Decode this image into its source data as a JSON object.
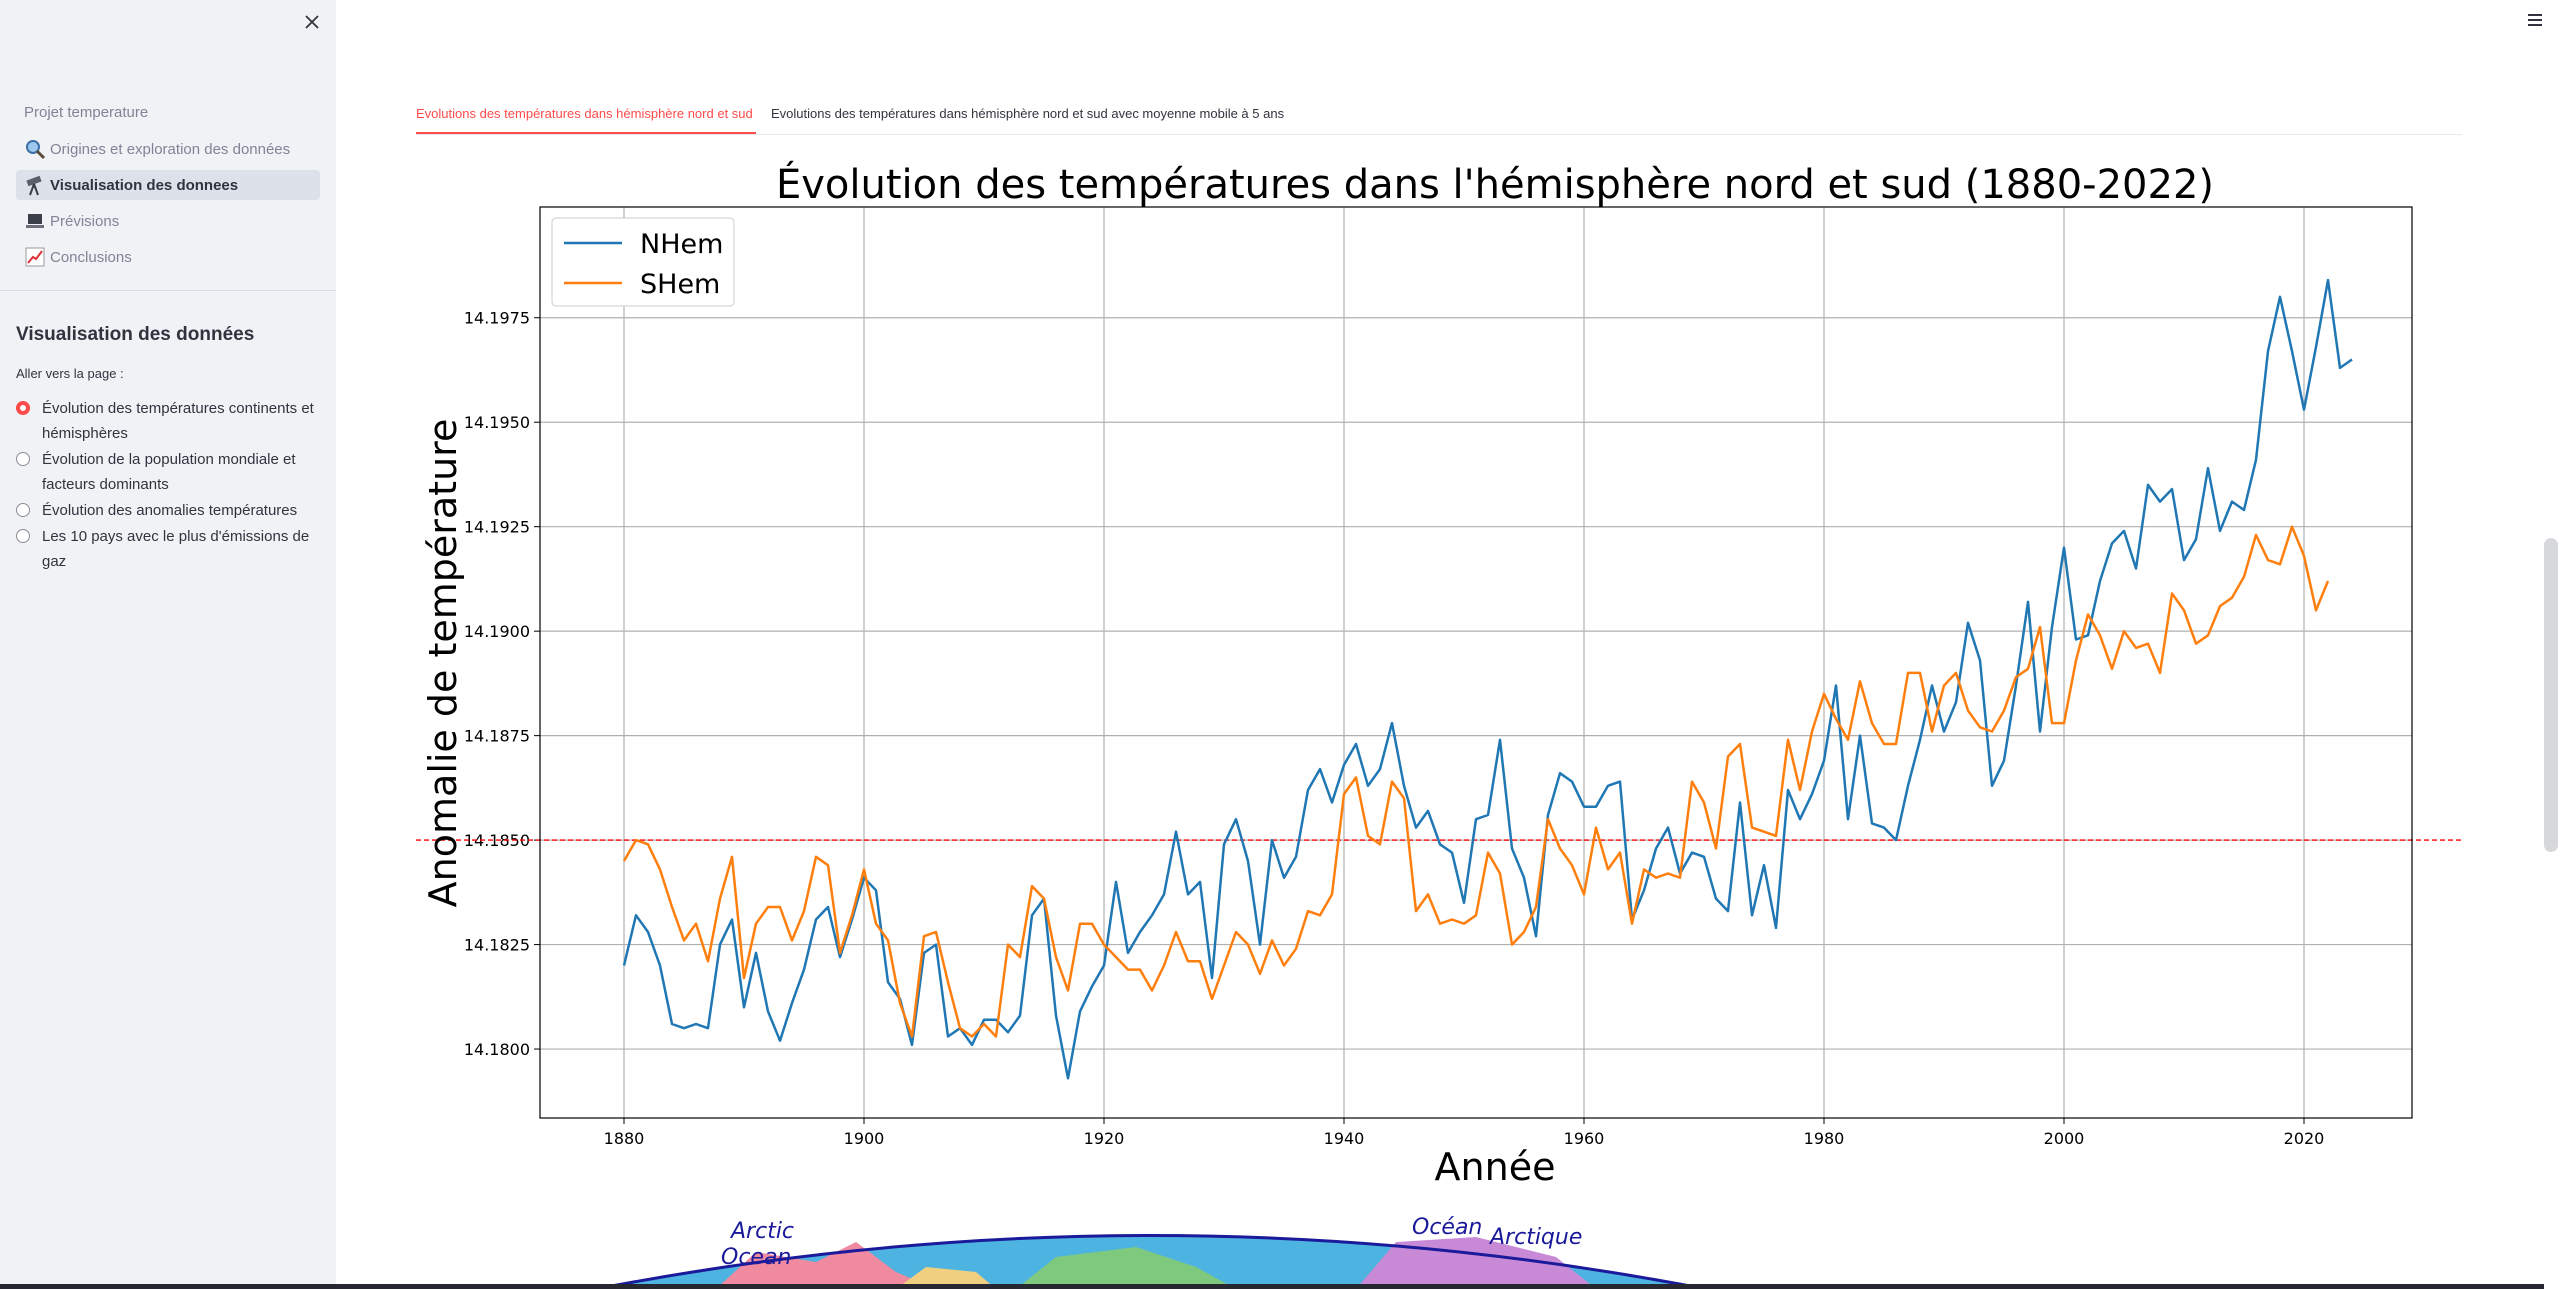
{
  "sidebar": {
    "project_title": "Projet temperature",
    "nav_items": [
      {
        "label": "Origines et exploration des données",
        "icon": "magnifier-icon",
        "active": false
      },
      {
        "label": "Visualisation des donnees",
        "icon": "telescope-icon",
        "active": true
      },
      {
        "label": "Prévisions",
        "icon": "laptop-icon",
        "active": false
      },
      {
        "label": "Conclusions",
        "icon": "chart-up-icon",
        "active": false
      }
    ],
    "section_title": "Visualisation des données",
    "radio_label": "Aller vers la page :",
    "radio_options": [
      {
        "label": "Évolution des températures continents et hémisphères",
        "selected": true
      },
      {
        "label": "Évolution de la population mondiale et facteurs dominants",
        "selected": false
      },
      {
        "label": "Évolution des anomalies températures",
        "selected": false
      },
      {
        "label": "Les 10 pays avec le plus d'émissions de gaz",
        "selected": false
      }
    ],
    "accent_color": "#ff4b4b"
  },
  "tabs": [
    {
      "label": "Evolutions des températures dans hémisphère nord et sud",
      "active": true
    },
    {
      "label": "Evolutions des températures dans hémisphère nord et sud avec moyenne mobile à 5 ans",
      "active": false
    }
  ],
  "map": {
    "labels": [
      "Arctic",
      "Ocean",
      "Océan",
      "Arctique"
    ]
  },
  "chart_data": {
    "type": "line",
    "title": "Évolution des températures dans l'hémisphère nord et sud (1880-2022)",
    "xlabel": "Année",
    "ylabel": "Anomalie de température",
    "xlim": [
      1873,
      2029
    ],
    "ylim": [
      14.17835,
      14.20015
    ],
    "xticks": [
      1880,
      1900,
      1920,
      1940,
      1960,
      1980,
      2000,
      2020
    ],
    "yticks": [
      14.18,
      14.1825,
      14.185,
      14.1875,
      14.19,
      14.1925,
      14.195,
      14.1975
    ],
    "ytick_labels": [
      "14.1800",
      "14.1825",
      "14.1850",
      "14.1875",
      "14.1900",
      "14.1925",
      "14.1950",
      "14.1975"
    ],
    "grid": true,
    "legend_position": "top-left",
    "reference_line": {
      "y": 14.185,
      "color": "#ff0000",
      "style": "dashed"
    },
    "x_start": 1880,
    "series": [
      {
        "name": "NHem",
        "color": "#1f77b4",
        "values": [
          14.182,
          14.1832,
          14.1828,
          14.182,
          14.1806,
          14.1805,
          14.1806,
          14.1805,
          14.1825,
          14.1831,
          14.181,
          14.1823,
          14.1809,
          14.1802,
          14.1811,
          14.1819,
          14.1831,
          14.1834,
          14.1822,
          14.1831,
          14.1841,
          14.1838,
          14.1816,
          14.1812,
          14.1801,
          14.1823,
          14.1825,
          14.1803,
          14.1805,
          14.1801,
          14.1807,
          14.1807,
          14.1804,
          14.1808,
          14.1832,
          14.1836,
          14.1808,
          14.1793,
          14.1809,
          14.1815,
          14.182,
          14.184,
          14.1823,
          14.1828,
          14.1832,
          14.1837,
          14.1852,
          14.1837,
          14.184,
          14.1817,
          14.1849,
          14.1855,
          14.1845,
          14.1825,
          14.185,
          14.1841,
          14.1846,
          14.1862,
          14.1867,
          14.1859,
          14.1868,
          14.1873,
          14.1863,
          14.1867,
          14.1878,
          14.1863,
          14.1853,
          14.1857,
          14.1849,
          14.1847,
          14.1835,
          14.1855,
          14.1856,
          14.1874,
          14.1848,
          14.1841,
          14.1827,
          14.1856,
          14.1866,
          14.1864,
          14.1858,
          14.1858,
          14.1863,
          14.1864,
          14.1831,
          14.1838,
          14.1848,
          14.1853,
          14.1842,
          14.1847,
          14.1846,
          14.1836,
          14.1833,
          14.1859,
          14.1832,
          14.1844,
          14.1829,
          14.1862,
          14.1855,
          14.1861,
          14.1869,
          14.1887,
          14.1855,
          14.1875,
          14.1854,
          14.1853,
          14.185,
          14.1863,
          14.1874,
          14.1887,
          14.1876,
          14.1883,
          14.1902,
          14.1893,
          14.1863,
          14.1869,
          14.1887,
          14.1907,
          14.1876,
          14.1901,
          14.192,
          14.1898,
          14.1899,
          14.1912,
          14.1921,
          14.1924,
          14.1915,
          14.1935,
          14.1931,
          14.1934,
          14.1917,
          14.1922,
          14.1939,
          14.1924,
          14.1931,
          14.1929,
          14.1941,
          14.1967,
          14.198,
          14.1967,
          14.1953,
          14.1968,
          14.1984,
          14.1963,
          14.1965
        ]
      },
      {
        "name": "SHem",
        "color": "#ff7f0e",
        "values": [
          14.1845,
          14.185,
          14.1849,
          14.1843,
          14.1834,
          14.1826,
          14.183,
          14.1821,
          14.1836,
          14.1846,
          14.1817,
          14.183,
          14.1834,
          14.1834,
          14.1826,
          14.1833,
          14.1846,
          14.1844,
          14.1823,
          14.1832,
          14.1843,
          14.183,
          14.1826,
          14.1811,
          14.1803,
          14.1827,
          14.1828,
          14.1816,
          14.1805,
          14.1803,
          14.1806,
          14.1803,
          14.1825,
          14.1822,
          14.1839,
          14.1836,
          14.1822,
          14.1814,
          14.183,
          14.183,
          14.1825,
          14.1822,
          14.1819,
          14.1819,
          14.1814,
          14.182,
          14.1828,
          14.1821,
          14.1821,
          14.1812,
          14.182,
          14.1828,
          14.1825,
          14.1818,
          14.1826,
          14.182,
          14.1824,
          14.1833,
          14.1832,
          14.1837,
          14.1861,
          14.1865,
          14.1851,
          14.1849,
          14.1864,
          14.186,
          14.1833,
          14.1837,
          14.183,
          14.1831,
          14.183,
          14.1832,
          14.1847,
          14.1842,
          14.1825,
          14.1828,
          14.1834,
          14.1855,
          14.1848,
          14.1844,
          14.1837,
          14.1853,
          14.1843,
          14.1847,
          14.183,
          14.1843,
          14.1841,
          14.1842,
          14.1841,
          14.1864,
          14.1859,
          14.1848,
          14.187,
          14.1873,
          14.1853,
          14.1852,
          14.1851,
          14.1874,
          14.1862,
          14.1876,
          14.1885,
          14.1879,
          14.1874,
          14.1888,
          14.1878,
          14.1873,
          14.1873,
          14.189,
          14.189,
          14.1876,
          14.1887,
          14.189,
          14.1881,
          14.1877,
          14.1876,
          14.1881,
          14.1889,
          14.1891,
          14.1901,
          14.1878,
          14.1878,
          14.1893,
          14.1904,
          14.1899,
          14.1891,
          14.19,
          14.1896,
          14.1897,
          14.189,
          14.1909,
          14.1905,
          14.1897,
          14.1899,
          14.1906,
          14.1908,
          14.1913,
          14.1923,
          14.1917,
          14.1916,
          14.1925,
          14.1918,
          14.1905,
          14.1912
        ]
      }
    ]
  }
}
